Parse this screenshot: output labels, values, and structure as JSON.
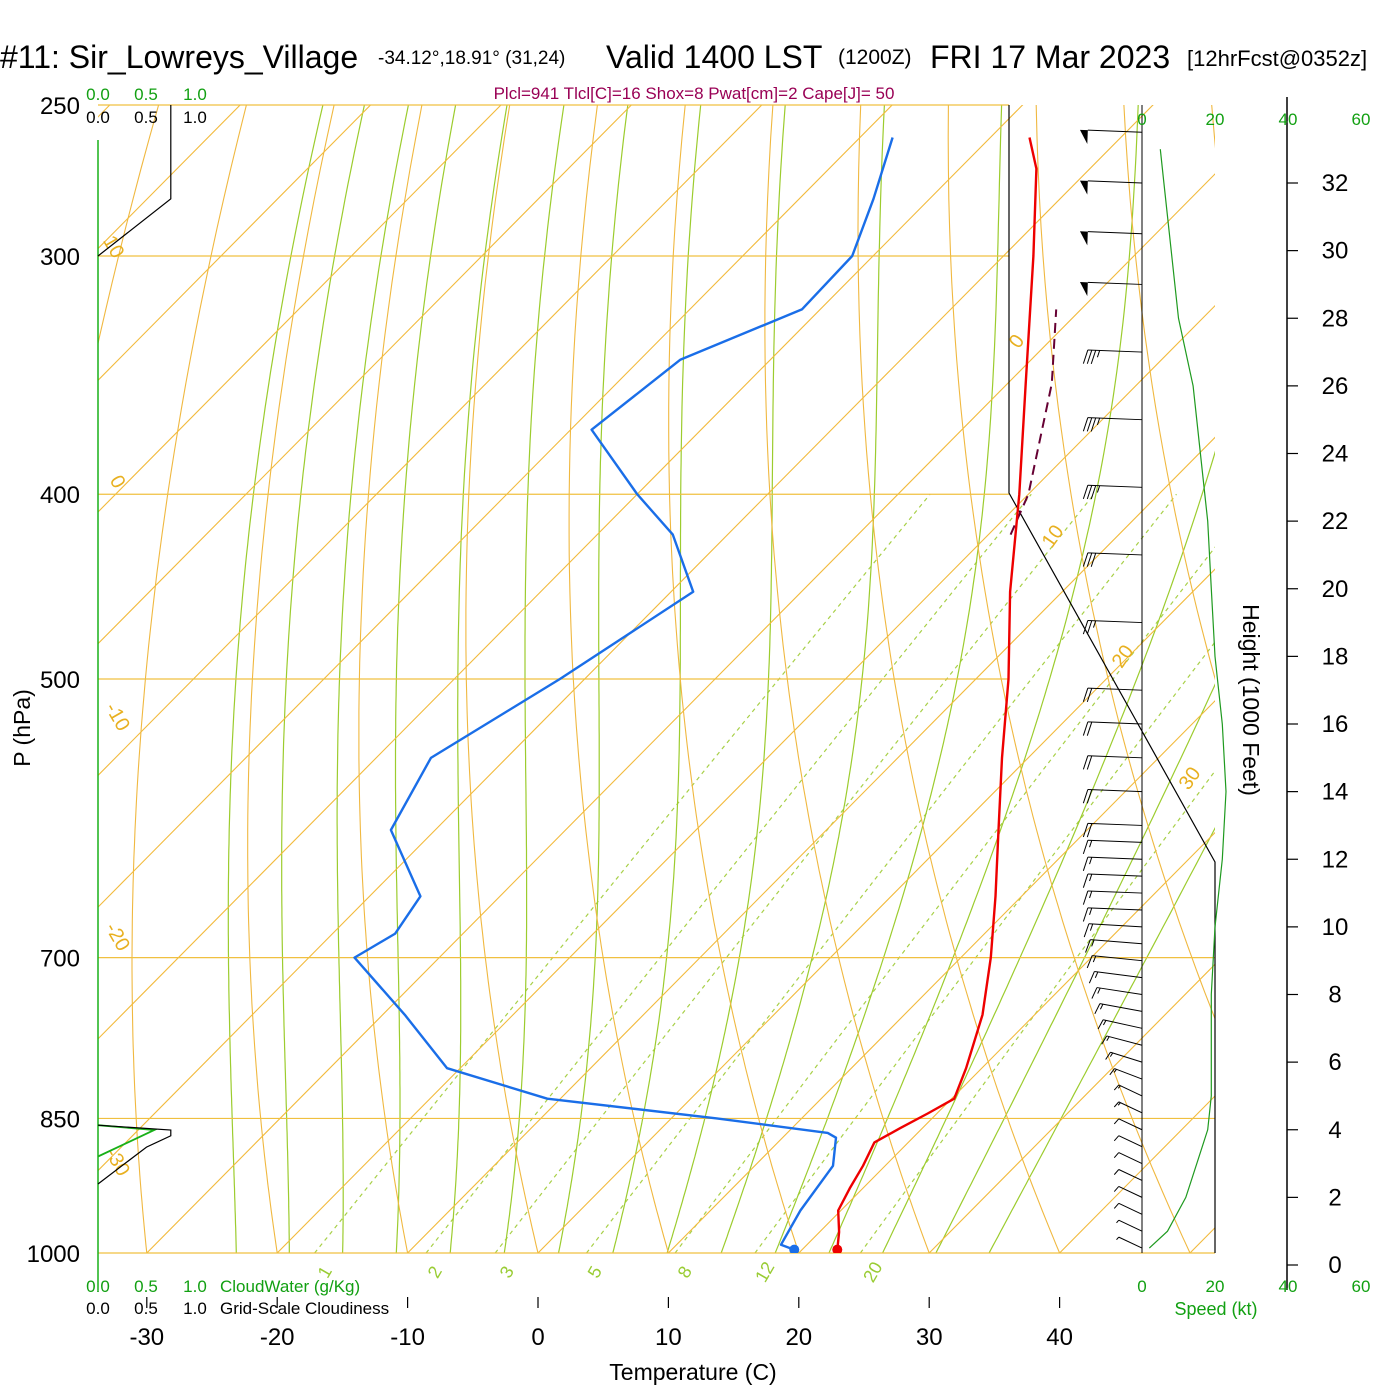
{
  "header": {
    "station": "#11: Sir_Lowreys_Village",
    "coords": "-34.12°,18.91° (31,24)",
    "valid": "Valid 1400 LST",
    "zulu": "(1200Z)",
    "date": "FRI 17 Mar 2023",
    "forecast": "[12hrFcst@0352z]"
  },
  "indices": "Plcl=941 Tlcl[C]=16 Shox=8 Pwat[cm]=2 Cape[J]= 50",
  "chart_data": {
    "type": "line",
    "subtype": "skew-T log-P sounding",
    "xlabel": "Temperature (C)",
    "ylabel": "P (hPa)",
    "y2label": "Height (1000 Feet)",
    "x_ticks": [
      -30,
      -20,
      -10,
      0,
      10,
      20,
      30,
      40
    ],
    "p_ticks": [
      250,
      300,
      400,
      500,
      700,
      850,
      1000
    ],
    "height_ticks": [
      0,
      2,
      4,
      6,
      8,
      10,
      12,
      14,
      16,
      18,
      20,
      22,
      24,
      26,
      28,
      30,
      32
    ],
    "cloud_ticks": [
      "0.0",
      "0.5",
      "1.0"
    ],
    "cloudwater_label": "CloudWater (g/Kg)",
    "cloudiness_label": "Grid-Scale Cloudiness",
    "speed_ticks": [
      "0",
      "20",
      "40",
      "60"
    ],
    "speed_label": "Speed (kt)",
    "isotherm_labels": [
      "-30",
      "-20",
      "-10",
      "0",
      "10",
      "0",
      "10",
      "20",
      "30"
    ],
    "mixing_ratio_labels": [
      "1",
      "2",
      "3",
      "5",
      "8",
      "12",
      "20"
    ],
    "colors": {
      "temperature": "#ee0000",
      "dewpoint": "#1a6ee8",
      "parcel": "#660033",
      "isobar": "#f0c040",
      "isotherm": "#f2ba3c",
      "dry_adiabat": "#f0b840",
      "moist_adiabat": "#9ccc2e",
      "mixing_ratio": "#a8d048",
      "wind_speed": "#1f9a1f",
      "cloudwater": "#18b018",
      "indices_text": "#990055",
      "green_ticks": "#12a012"
    },
    "temperature_profile": [
      {
        "p": 996,
        "t": 22.7
      },
      {
        "p": 975,
        "t": 21.5
      },
      {
        "p": 950,
        "t": 19.8
      },
      {
        "p": 925,
        "t": 19.0
      },
      {
        "p": 900,
        "t": 18.3
      },
      {
        "p": 875,
        "t": 17.4
      },
      {
        "p": 860,
        "t": 18.3
      },
      {
        "p": 845,
        "t": 19.3
      },
      {
        "p": 830,
        "t": 20.2
      },
      {
        "p": 800,
        "t": 18.8
      },
      {
        "p": 750,
        "t": 16.0
      },
      {
        "p": 700,
        "t": 12.3
      },
      {
        "p": 650,
        "t": 8.0
      },
      {
        "p": 600,
        "t": 3.2
      },
      {
        "p": 550,
        "t": -2.0
      },
      {
        "p": 500,
        "t": -7.5
      },
      {
        "p": 450,
        "t": -14.0
      },
      {
        "p": 400,
        "t": -20.7
      },
      {
        "p": 350,
        "t": -28.6
      },
      {
        "p": 300,
        "t": -37.7
      },
      {
        "p": 270,
        "t": -44.1
      },
      {
        "p": 260,
        "t": -47.0
      }
    ],
    "dewpoint_profile": [
      {
        "p": 996,
        "t": 19.4
      },
      {
        "p": 990,
        "t": 18.0
      },
      {
        "p": 950,
        "t": 16.9
      },
      {
        "p": 900,
        "t": 16.0
      },
      {
        "p": 870,
        "t": 14.1
      },
      {
        "p": 865,
        "t": 13.1
      },
      {
        "p": 850,
        "t": 3.5
      },
      {
        "p": 830,
        "t": -11.0
      },
      {
        "p": 800,
        "t": -21.0
      },
      {
        "p": 750,
        "t": -28.3
      },
      {
        "p": 700,
        "t": -36.5
      },
      {
        "p": 680,
        "t": -35.2
      },
      {
        "p": 650,
        "t": -36.1
      },
      {
        "p": 600,
        "t": -43.4
      },
      {
        "p": 550,
        "t": -45.8
      },
      {
        "p": 500,
        "t": -41.9
      },
      {
        "p": 450,
        "t": -38.3
      },
      {
        "p": 420,
        "t": -44.2
      },
      {
        "p": 400,
        "t": -50.0
      },
      {
        "p": 370,
        "t": -58.4
      },
      {
        "p": 340,
        "t": -56.9
      },
      {
        "p": 320,
        "t": -51.4
      },
      {
        "p": 300,
        "t": -51.6
      },
      {
        "p": 280,
        "t": -54.3
      },
      {
        "p": 260,
        "t": -57.5
      }
    ],
    "parcel_profile": [
      {
        "p": 420,
        "t": -18.3
      },
      {
        "p": 400,
        "t": -20.0
      },
      {
        "p": 350,
        "t": -26.6
      },
      {
        "p": 320,
        "t": -31.9
      }
    ],
    "surface_temperature": {
      "p": 996,
      "t": 22.7
    },
    "surface_dewpoint": {
      "p": 996,
      "t": 19.4
    },
    "cloudiness_profile": [
      {
        "p": 250,
        "c": 0.75
      },
      {
        "p": 280,
        "c": 0.75
      },
      {
        "p": 300,
        "c": 0.0
      }
    ],
    "cloudwater_profile": [
      {
        "p": 857,
        "c": 0.0
      },
      {
        "p": 862,
        "c": 0.58
      },
      {
        "p": 890,
        "c": 0.0
      }
    ],
    "low_cloudiness_profile": [
      {
        "p": 857,
        "c": 0.0
      },
      {
        "p": 862,
        "c": 0.75
      },
      {
        "p": 868,
        "c": 0.75
      },
      {
        "p": 880,
        "c": 0.5
      },
      {
        "p": 920,
        "c": 0.0
      }
    ],
    "wind_speed_profile": [
      {
        "h": 0.5,
        "s": 2
      },
      {
        "h": 1,
        "s": 7
      },
      {
        "h": 2,
        "s": 12
      },
      {
        "h": 3,
        "s": 15
      },
      {
        "h": 4,
        "s": 18
      },
      {
        "h": 5,
        "s": 19
      },
      {
        "h": 8,
        "s": 19
      },
      {
        "h": 10,
        "s": 20
      },
      {
        "h": 12,
        "s": 22
      },
      {
        "h": 14,
        "s": 23
      },
      {
        "h": 16,
        "s": 22
      },
      {
        "h": 18,
        "s": 20
      },
      {
        "h": 20,
        "s": 19
      },
      {
        "h": 22,
        "s": 18
      },
      {
        "h": 24,
        "s": 16
      },
      {
        "h": 26,
        "s": 14
      },
      {
        "h": 28,
        "s": 10
      },
      {
        "h": 30,
        "s": 8
      },
      {
        "h": 32,
        "s": 6
      },
      {
        "h": 33,
        "s": 5
      }
    ],
    "wind_barbs": [
      {
        "h": 0.5,
        "dir": 155,
        "kt": 5
      },
      {
        "h": 1.0,
        "dir": 155,
        "kt": 8
      },
      {
        "h": 1.5,
        "dir": 155,
        "kt": 10
      },
      {
        "h": 2.0,
        "dir": 155,
        "kt": 12
      },
      {
        "h": 2.5,
        "dir": 155,
        "kt": 12
      },
      {
        "h": 3.0,
        "dir": 155,
        "kt": 13
      },
      {
        "h": 3.5,
        "dir": 155,
        "kt": 14
      },
      {
        "h": 4.0,
        "dir": 155,
        "kt": 14
      },
      {
        "h": 4.5,
        "dir": 155,
        "kt": 15
      },
      {
        "h": 5.0,
        "dir": 155,
        "kt": 15
      },
      {
        "h": 5.5,
        "dir": 150,
        "kt": 15
      },
      {
        "h": 6.0,
        "dir": 145,
        "kt": 15
      },
      {
        "h": 6.5,
        "dir": 140,
        "kt": 15
      },
      {
        "h": 7.0,
        "dir": 135,
        "kt": 15
      },
      {
        "h": 7.5,
        "dir": 130,
        "kt": 15
      },
      {
        "h": 8.0,
        "dir": 125,
        "kt": 15
      },
      {
        "h": 8.5,
        "dir": 120,
        "kt": 15
      },
      {
        "h": 9.0,
        "dir": 115,
        "kt": 15
      },
      {
        "h": 9.5,
        "dir": 110,
        "kt": 15
      },
      {
        "h": 10.0,
        "dir": 105,
        "kt": 15
      },
      {
        "h": 10.5,
        "dir": 100,
        "kt": 15
      },
      {
        "h": 11.0,
        "dir": 100,
        "kt": 15
      },
      {
        "h": 11.5,
        "dir": 100,
        "kt": 15
      },
      {
        "h": 12.0,
        "dir": 100,
        "kt": 15
      },
      {
        "h": 12.5,
        "dir": 100,
        "kt": 15
      },
      {
        "h": 13.0,
        "dir": 100,
        "kt": 20
      },
      {
        "h": 14.0,
        "dir": 100,
        "kt": 20
      },
      {
        "h": 15.0,
        "dir": 100,
        "kt": 20
      },
      {
        "h": 16.0,
        "dir": 100,
        "kt": 20
      },
      {
        "h": 17.0,
        "dir": 100,
        "kt": 20
      },
      {
        "h": 19.0,
        "dir": 100,
        "kt": 25
      },
      {
        "h": 21.0,
        "dir": 100,
        "kt": 30
      },
      {
        "h": 23.0,
        "dir": 100,
        "kt": 35
      },
      {
        "h": 25.0,
        "dir": 100,
        "kt": 35
      },
      {
        "h": 27.0,
        "dir": 100,
        "kt": 35
      },
      {
        "h": 29.0,
        "dir": 100,
        "kt": 50
      },
      {
        "h": 30.5,
        "dir": 100,
        "kt": 50
      },
      {
        "h": 32.0,
        "dir": 100,
        "kt": 50
      },
      {
        "h": 33.5,
        "dir": 100,
        "kt": 50
      }
    ]
  }
}
